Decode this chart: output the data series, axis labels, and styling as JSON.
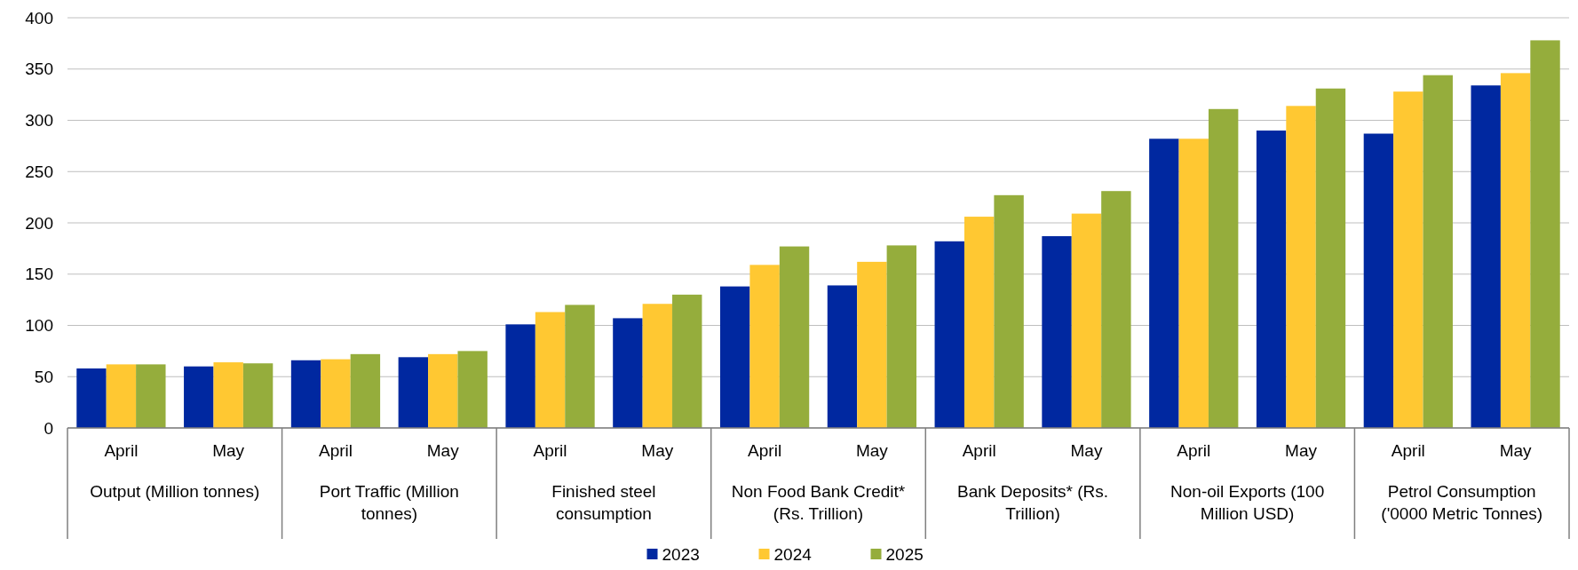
{
  "chart_data": {
    "type": "bar",
    "categories": [
      "April",
      "May",
      "April",
      "May",
      "April",
      "May",
      "April",
      "May",
      "April",
      "May",
      "April",
      "May",
      "April",
      "May"
    ],
    "annotations": [
      "Output (Million tonnes)",
      "Port Traffic (Million tonnes)",
      "Finished steel consumption",
      "Non Food Bank Credit* (Rs. Trillion)",
      "Bank Deposits* (Rs. Trillion)",
      "Non-oil Exports (100 Million USD)",
      "Petrol Consumption ('0000 Metric Tonnes)"
    ],
    "series": [
      {
        "name": "2023",
        "color": "#0028a0",
        "values": [
          58,
          60,
          66,
          69,
          101,
          107,
          138,
          139,
          182,
          187,
          282,
          290,
          287,
          334
        ]
      },
      {
        "name": "2024",
        "color": "#ffc832",
        "values": [
          62,
          64,
          67,
          72,
          113,
          121,
          159,
          162,
          206,
          209,
          282,
          314,
          328,
          346
        ]
      },
      {
        "name": "2025",
        "color": "#95ad3c",
        "values": [
          62,
          63,
          72,
          75,
          120,
          130,
          177,
          178,
          227,
          231,
          311,
          331,
          344,
          378
        ]
      }
    ],
    "ylim": [
      0,
      400
    ],
    "yticks": [
      0,
      50,
      100,
      150,
      200,
      250,
      300,
      350,
      400
    ],
    "grid": "y",
    "legend": "bottom"
  }
}
